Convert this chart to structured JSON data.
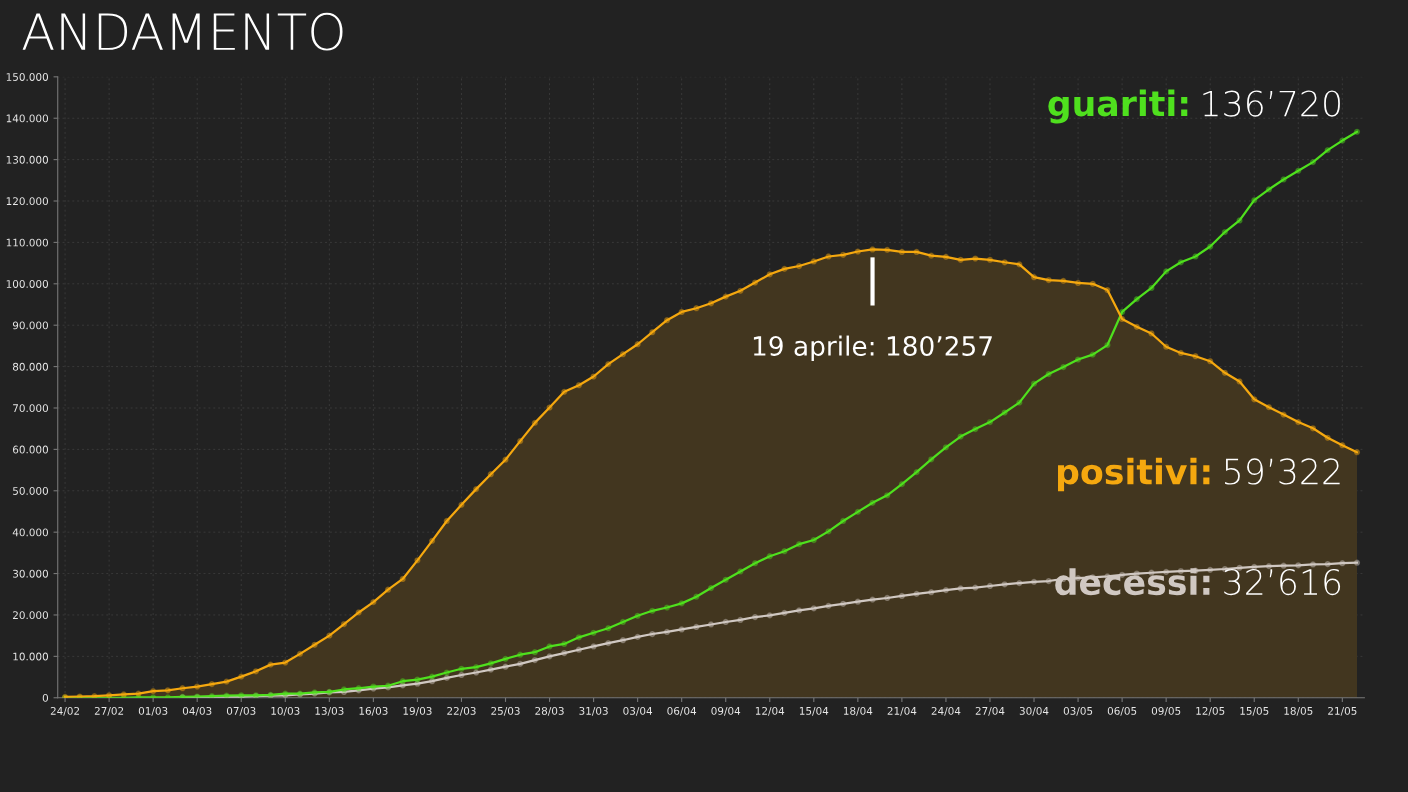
{
  "chart_data": {
    "type": "line",
    "title": "ANDAMENTO",
    "categories": [
      "24/02",
      null,
      null,
      "27/02",
      null,
      null,
      "01/03",
      null,
      null,
      "04/03",
      null,
      null,
      "07/03",
      null,
      null,
      "10/03",
      null,
      null,
      "13/03",
      null,
      null,
      "16/03",
      null,
      null,
      "19/03",
      null,
      null,
      "22/03",
      null,
      null,
      "25/03",
      null,
      null,
      "28/03",
      null,
      null,
      "31/03",
      null,
      null,
      "03/04",
      null,
      null,
      "06/04",
      null,
      null,
      "09/04",
      null,
      null,
      "12/04",
      null,
      null,
      "15/04",
      null,
      null,
      "18/04",
      null,
      null,
      "21/04",
      null,
      null,
      "24/04",
      null,
      null,
      "27/04",
      null,
      null,
      "30/04",
      null,
      null,
      "03/05",
      null,
      null,
      "06/05",
      null,
      null,
      "09/05",
      null,
      null,
      "12/05",
      null,
      null,
      "15/05",
      null,
      null,
      "18/05",
      null,
      null,
      "21/05",
      null
    ],
    "series": [
      {
        "name": "positivi:",
        "type": "area",
        "color": "#f5a80f",
        "values": [
          200,
          300,
          400,
          600,
          800,
          1000,
          1600,
          1800,
          2300,
          2700,
          3300,
          3900,
          5100,
          6400,
          8000,
          8500,
          10600,
          12800,
          15000,
          17800,
          20600,
          23100,
          26100,
          28700,
          33200,
          37900,
          42700,
          46600,
          50400,
          54000,
          57500,
          62000,
          66400,
          70100,
          73900,
          75500,
          77600,
          80600,
          83000,
          85400,
          88300,
          91200,
          93200,
          94100,
          95300,
          96900,
          98300,
          100300,
          102300,
          103600,
          104300,
          105400,
          106600,
          107000,
          107800,
          108300,
          108200,
          107700,
          107700,
          106800,
          106500,
          105800,
          106100,
          105800,
          105200,
          104700,
          101600,
          100900,
          100700,
          100200,
          100000,
          98500,
          91500,
          89600,
          88000,
          84800,
          83300,
          82500,
          81300,
          78500,
          76400,
          72100,
          70200,
          68400,
          66600,
          65100,
          62800,
          61000,
          59322
        ],
        "value_labels": [
          null,
          null,
          null,
          null,
          null,
          null,
          null,
          null,
          null,
          null,
          null,
          null,
          null,
          null,
          null,
          null,
          null,
          null,
          null,
          null,
          null,
          null,
          null,
          null,
          null,
          null,
          null,
          null,
          null,
          null,
          null,
          null,
          null,
          null,
          null,
          null,
          null,
          null,
          null,
          null,
          null,
          null,
          null,
          null,
          null,
          null,
          null,
          null,
          null,
          null,
          null,
          null,
          null,
          null,
          null,
          null,
          null,
          null,
          null,
          null,
          null,
          null,
          null,
          null,
          null,
          null,
          null,
          null,
          null,
          null,
          null,
          null,
          null,
          null,
          null,
          null,
          null,
          null,
          null,
          null,
          null,
          null,
          null,
          null,
          null,
          null,
          null,
          null,
          null
        ]
      },
      {
        "name": "guariti:",
        "color": "#4fe01e",
        "values": [
          0,
          0,
          0,
          0,
          0,
          100,
          100,
          100,
          200,
          300,
          400,
          500,
          600,
          600,
          700,
          1000,
          1000,
          1300,
          1400,
          2000,
          2300,
          2700,
          2900,
          4000,
          4400,
          5100,
          6100,
          7000,
          7400,
          8300,
          9400,
          10400,
          11000,
          12400,
          13000,
          14600,
          15700,
          16800,
          18300,
          19800,
          21000,
          21800,
          22800,
          24400,
          26500,
          28500,
          30500,
          32500,
          34200,
          35400,
          37100,
          38100,
          40200,
          42700,
          44900,
          47100,
          48900,
          51600,
          54500,
          57600,
          60500,
          63100,
          64900,
          66600,
          68900,
          71300,
          75900,
          78200,
          79900,
          81700,
          82900,
          85200,
          93200,
          96300,
          99000,
          103000,
          105200,
          106600,
          109000,
          112500,
          115300,
          120200,
          122800,
          125200,
          127300,
          129400,
          132300,
          134600,
          136720
        ],
        "value_labels": [
          null,
          null,
          null,
          null,
          null,
          null,
          null,
          null,
          null,
          null,
          null,
          null,
          null,
          null,
          null,
          null,
          null,
          null,
          null,
          null,
          null,
          null,
          null,
          null,
          null,
          null,
          null,
          null,
          null,
          null,
          null,
          null,
          null,
          null,
          null,
          null,
          null,
          null,
          null,
          null,
          null,
          null,
          null,
          null,
          null,
          null,
          null,
          null,
          null,
          null,
          null,
          null,
          null,
          null,
          null,
          null,
          null,
          null,
          null,
          null,
          null,
          null,
          null,
          null,
          null,
          null,
          null,
          null,
          null,
          null,
          null,
          null,
          null,
          null,
          null,
          null,
          null,
          null,
          null,
          null,
          null,
          null,
          null,
          null,
          null,
          null,
          null,
          null,
          null
        ]
      },
      {
        "name": "decessi:",
        "color": "#d0c8c2",
        "values": [
          null,
          null,
          null,
          null,
          null,
          null,
          null,
          null,
          100,
          100,
          100,
          200,
          200,
          400,
          500,
          600,
          800,
          1000,
          1300,
          1400,
          1800,
          2200,
          2500,
          3000,
          3400,
          4000,
          4800,
          5500,
          6100,
          6800,
          7500,
          8200,
          9100,
          10000,
          10800,
          11600,
          12400,
          13200,
          13900,
          14700,
          15400,
          15900,
          16500,
          17100,
          17700,
          18300,
          18800,
          19500,
          19900,
          20500,
          21100,
          21600,
          22200,
          22700,
          23200,
          23700,
          24100,
          24600,
          25100,
          25500,
          26000,
          26400,
          26600,
          27000,
          27400,
          27700,
          28000,
          28200,
          28700,
          28900,
          29100,
          29300,
          29700,
          30000,
          30200,
          30400,
          30600,
          30700,
          30900,
          31100,
          31400,
          31600,
          31800,
          31900,
          32000,
          32200,
          32300,
          32500,
          32616
        ],
        "value_labels": [
          null,
          null,
          null,
          null,
          null,
          null,
          null,
          null,
          null,
          null,
          null,
          null,
          null,
          null,
          null,
          null,
          null,
          null,
          null,
          null,
          null,
          null,
          null,
          null,
          null,
          null,
          null,
          null,
          null,
          null,
          null,
          null,
          null,
          null,
          null,
          null,
          null,
          null,
          null,
          null,
          null,
          null,
          null,
          null,
          null,
          null,
          null,
          null,
          null,
          null,
          null,
          null,
          null,
          null,
          null,
          null,
          null,
          null,
          null,
          null,
          null,
          null,
          null,
          null,
          null,
          null,
          null,
          null,
          null,
          null,
          null,
          null,
          null,
          null,
          null,
          null,
          null,
          null,
          null,
          null,
          null,
          null,
          null,
          null,
          null,
          null,
          null,
          null,
          null
        ]
      }
    ],
    "ylim": [
      0,
      150000
    ],
    "yticks": [
      0,
      {
        "value": 10000,
        "label": "10.000"
      },
      {
        "value": 20000,
        "label": "20.000"
      },
      {
        "value": 30000,
        "label": "30.000"
      },
      {
        "value": 40000,
        "label": "40.000"
      },
      {
        "value": 50000,
        "label": "50.000"
      },
      {
        "value": 60000,
        "label": "60.000"
      },
      {
        "value": 70000,
        "label": "70.000"
      },
      {
        "value": 80000,
        "label": "80.000"
      },
      {
        "value": 90000,
        "label": "90.000"
      },
      {
        "value": 100000,
        "label": "100.000"
      },
      {
        "value": 110000,
        "label": "110.000"
      },
      {
        "value": 120000,
        "label": "120.000"
      },
      {
        "value": 130000,
        "label": "130.000"
      },
      {
        "value": 140000,
        "label": "140.000"
      },
      {
        "value": 150000,
        "label": "150.000"
      }
    ],
    "annotations": [
      "19 aprile: 180’257",
      "59’322",
      "136’720",
      "32’616"
    ],
    "grid": true,
    "marker": "circle",
    "line_style": "solid",
    "legend": false
  }
}
